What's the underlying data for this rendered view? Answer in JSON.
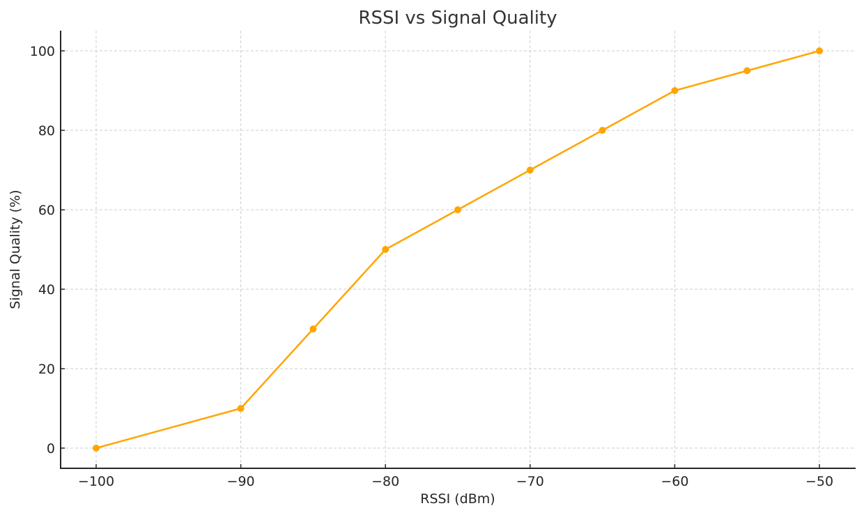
{
  "chart_data": {
    "type": "line",
    "title": "RSSI vs Signal Quality",
    "xlabel": "RSSI (dBm)",
    "ylabel": "Signal Quality (%)",
    "x": [
      -100,
      -90,
      -85,
      -80,
      -75,
      -70,
      -65,
      -60,
      -55,
      -50
    ],
    "series": [
      {
        "name": "Signal Quality",
        "values": [
          0,
          10,
          30,
          50,
          60,
          70,
          80,
          90,
          95,
          100
        ],
        "color": "#FFA500",
        "marker": "circle"
      }
    ],
    "xlim": [
      -102.5,
      -47.5
    ],
    "ylim": [
      -5,
      105
    ],
    "xticks": [
      -100,
      -90,
      -80,
      -70,
      -60,
      -50
    ],
    "xtick_labels": [
      "−100",
      "−90",
      "−80",
      "−70",
      "−60",
      "−50"
    ],
    "yticks": [
      0,
      20,
      40,
      60,
      80,
      100
    ],
    "ytick_labels": [
      "0",
      "20",
      "40",
      "60",
      "80",
      "100"
    ],
    "grid": true,
    "grid_style": "dashed",
    "legend": null
  }
}
